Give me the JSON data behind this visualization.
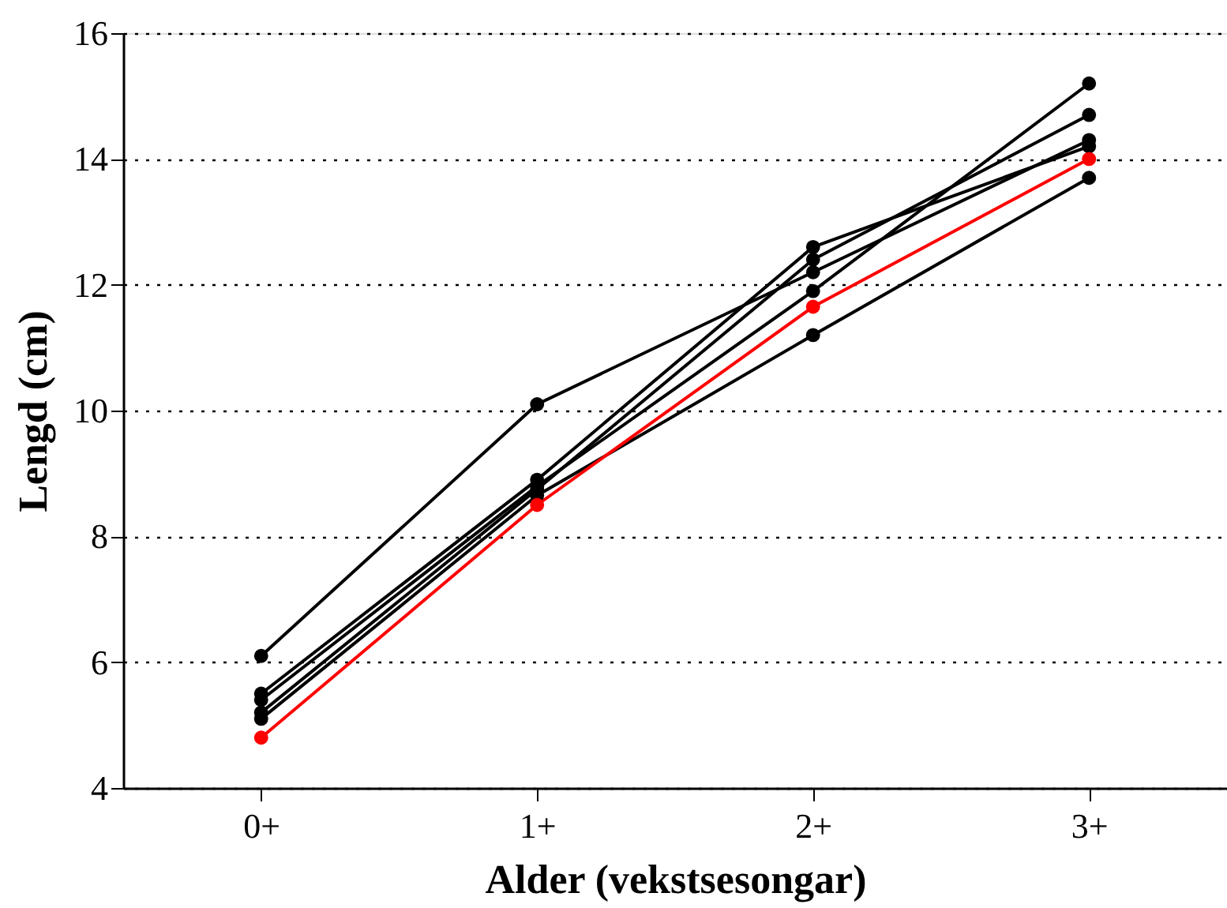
{
  "chart_data": {
    "type": "line",
    "xlabel": "Alder (vekstsesongar)",
    "ylabel": "Lengd (cm)",
    "categories": [
      "0+",
      "1+",
      "2+",
      "3+"
    ],
    "series": [
      {
        "color": "#000000",
        "values": [
          6.1,
          10.1,
          12.2,
          14.3
        ]
      },
      {
        "color": "#000000",
        "values": [
          5.5,
          8.9,
          12.6,
          14.2
        ]
      },
      {
        "color": "#000000",
        "values": [
          5.4,
          8.8,
          11.9,
          15.2
        ]
      },
      {
        "color": "#000000",
        "values": [
          5.2,
          8.75,
          12.4,
          14.7
        ]
      },
      {
        "color": "#000000",
        "values": [
          5.1,
          8.65,
          11.2,
          13.7
        ]
      },
      {
        "color": "#ff0000",
        "values": [
          4.8,
          8.5,
          11.65,
          14.0
        ]
      }
    ],
    "ylim": [
      4,
      16
    ],
    "yticks": [
      4,
      6,
      8,
      10,
      12,
      14,
      16
    ],
    "grid": "y",
    "marker": "circle",
    "line_style": "solid",
    "legend": false
  }
}
